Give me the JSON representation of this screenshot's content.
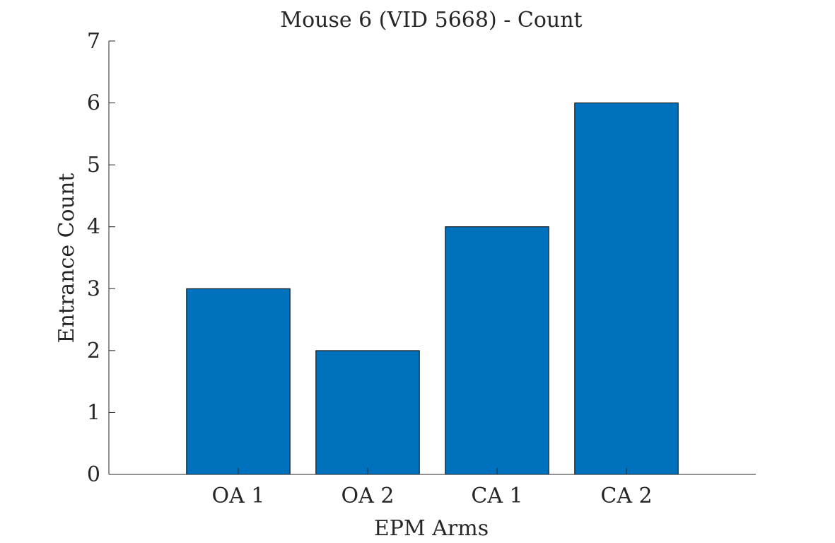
{
  "chart_data": {
    "type": "bar",
    "title": "Mouse 6 (VID 5668) - Count",
    "xlabel": "EPM Arms",
    "ylabel": "Entrance Count",
    "categories": [
      "OA 1",
      "OA 2",
      "CA 1",
      "CA 2"
    ],
    "values": [
      3,
      2,
      4,
      6
    ],
    "ylim": [
      0,
      7
    ],
    "yticks": [
      0,
      1,
      2,
      3,
      4,
      5,
      6,
      7
    ],
    "grid": false,
    "bar_color": "#0072bd"
  }
}
